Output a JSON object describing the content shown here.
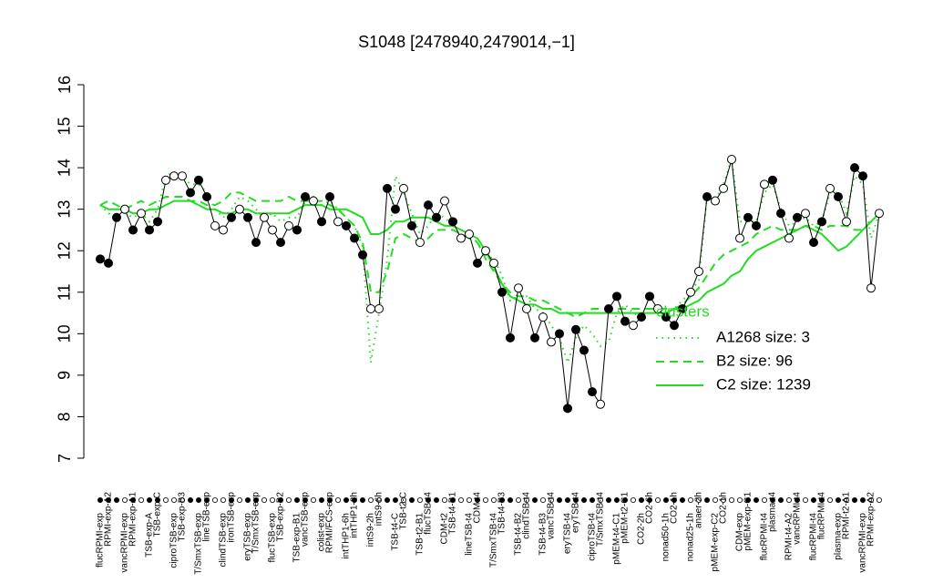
{
  "chart_data": {
    "type": "line",
    "title": "S1048 [2478940,2479014,−1]",
    "ylim": [
      7,
      16
    ],
    "yticks": [
      7,
      8,
      9,
      10,
      11,
      12,
      13,
      14,
      15,
      16
    ],
    "legend_title": "clusters",
    "legend_position": "right",
    "categories": [
      "flucRPMI-exp",
      "RPMI-exp-A2",
      null,
      "vancRPMI-exp",
      "RPMI-exp-A1",
      null,
      "TSB-exp-A",
      "TSB-exp-C",
      null,
      "ciproTSB-exp",
      "TSB-exp-B3",
      null,
      "T/SmxTSB-exp",
      "lineTSB-exp",
      null,
      "clindTSB-exp",
      "ironTSB-exp",
      null,
      "eryTSB-exp",
      "T/SmxTSB-exp",
      null,
      "flucTSB-exp",
      "TSB-exp-B2",
      null,
      "TSB-exp-B1",
      "vancTSB-exp",
      null,
      "colist-exp",
      "RPMI/FCS-exp",
      null,
      "intTHP1-6h",
      "intTHP1-2h",
      null,
      "intS9-2h",
      "intS9-6h",
      null,
      "TSB-t4-C",
      "TSB-t2-C",
      null,
      "TSB-t2-B1",
      "flucTSB-t4",
      null,
      "CDM-t2",
      "TSB-t4-B1",
      null,
      "lineTSB-t4",
      "CDM-t4",
      null,
      "T/SmxTSB-t4",
      "TSB-t4-B3",
      null,
      "TSB-t4-B2",
      "clindTSB-t4",
      null,
      "TSB-t4-B3",
      "vancTSB-t4",
      null,
      "eryTSB-t4",
      "eryTSB-t4",
      null,
      "ciproTSB-t4",
      "T/SmxTSB-t4",
      null,
      "pMEM-t4-C1",
      "pMEM-t2-C1",
      null,
      "CO2-2h",
      "CO2-6h",
      null,
      "nonad50-1h",
      "CO2-1h",
      null,
      "nonad25-1h",
      "anaer-2h",
      null,
      "pMEM-exp-C2",
      "CO2-1h",
      null,
      "CDM-exp",
      "pMEM-exp-C1",
      null,
      "flucRPMI-t4",
      "plasma-t4",
      null,
      "RPMI-t4-A2",
      "vancRPMI-t4",
      null,
      "flucRPMI-t4",
      "flucRPMI-t4",
      null,
      "plasma-exp",
      "RPMI-t2-A1",
      null,
      "vancRPMI-exp",
      "RPMI-exp-A2",
      null
    ],
    "filled": [
      true,
      true,
      true,
      false,
      true,
      false,
      true,
      true,
      false,
      false,
      false,
      true,
      true,
      true,
      false,
      false,
      true,
      false,
      true,
      true,
      false,
      false,
      true,
      false,
      true,
      true,
      false,
      true,
      true,
      false,
      true,
      true,
      true,
      false,
      false,
      true,
      true,
      false,
      true,
      false,
      true,
      true,
      false,
      true,
      false,
      false,
      true,
      false,
      false,
      true,
      true,
      false,
      false,
      true,
      false,
      false,
      true,
      true,
      true,
      true,
      true,
      false,
      true,
      true,
      true,
      false,
      true,
      true,
      false,
      true,
      true,
      true,
      false,
      false,
      true,
      false,
      false,
      false,
      false,
      true,
      true,
      false,
      true,
      true,
      false,
      true,
      false,
      true,
      true,
      false,
      true,
      false,
      true,
      true,
      false,
      false
    ],
    "series": [
      {
        "color": "#000000",
        "style": "solid",
        "markers": true,
        "values": [
          11.8,
          11.7,
          12.8,
          13.0,
          12.5,
          12.9,
          12.5,
          12.7,
          13.7,
          13.8,
          13.8,
          13.4,
          13.7,
          13.3,
          12.6,
          12.5,
          12.8,
          13.0,
          12.8,
          12.2,
          12.8,
          12.5,
          12.2,
          12.6,
          12.5,
          13.3,
          13.2,
          12.7,
          13.3,
          12.7,
          12.6,
          12.3,
          11.9,
          10.6,
          10.6,
          13.5,
          13.0,
          13.5,
          12.6,
          12.2,
          13.1,
          12.8,
          13.2,
          12.7,
          12.3,
          12.4,
          11.7,
          12.0,
          11.7,
          11.0,
          9.9,
          11.1,
          10.6,
          9.9,
          10.4,
          9.8,
          10.0,
          8.2,
          10.1,
          9.6,
          8.6,
          8.3,
          10.6,
          10.9,
          10.3,
          10.2,
          10.4,
          10.9,
          10.6,
          10.4,
          10.2,
          10.6,
          11.0,
          11.5,
          13.3,
          13.2,
          13.5,
          14.2,
          12.3,
          12.8,
          12.6,
          13.6,
          13.7,
          12.9,
          12.3,
          12.8,
          12.9,
          12.2,
          12.7,
          13.5,
          13.3,
          12.7,
          14.0,
          13.8,
          11.1,
          12.9
        ]
      },
      {
        "name": "A1268 size: 3",
        "color": "#22dd22",
        "style": "dotted",
        "values": [
          13.1,
          12.9,
          12.8,
          12.9,
          12.8,
          12.9,
          12.7,
          13.0,
          13.8,
          13.9,
          13.8,
          13.6,
          13.6,
          13.4,
          13.0,
          12.8,
          13.0,
          13.3,
          13.2,
          13.0,
          12.8,
          12.9,
          12.7,
          12.8,
          12.8,
          13.2,
          13.3,
          13.1,
          13.2,
          13.0,
          12.8,
          12.6,
          12.1,
          9.3,
          10.5,
          11.8,
          13.8,
          13.4,
          12.9,
          12.4,
          12.6,
          12.9,
          12.8,
          12.6,
          12.5,
          12.4,
          12.2,
          11.9,
          11.8,
          11.4,
          10.8,
          10.9,
          10.9,
          10.6,
          10.5,
          10.2,
          9.9,
          9.3,
          9.9,
          10.2,
          10.0,
          9.7,
          9.8,
          10.5,
          10.7,
          10.5,
          10.4,
          10.6,
          10.7,
          10.6,
          10.6,
          10.8,
          11.0,
          11.3,
          13.3,
          13.2,
          13.6,
          14.2,
          12.7,
          12.7,
          12.7,
          13.4,
          13.6,
          13.0,
          12.6,
          12.7,
          12.8,
          12.6,
          12.7,
          13.4,
          13.4,
          12.9,
          13.8,
          13.6,
          12.3,
          12.9
        ]
      },
      {
        "name": "B2 size: 96",
        "color": "#22dd22",
        "style": "dashed",
        "values": [
          13.1,
          13.2,
          13.1,
          13.0,
          13.1,
          13.2,
          13.1,
          13.2,
          13.3,
          13.3,
          13.3,
          13.2,
          13.2,
          13.1,
          13.1,
          13.2,
          13.4,
          13.4,
          13.3,
          13.2,
          13.2,
          13.2,
          13.2,
          13.3,
          13.2,
          13.2,
          13.2,
          13.2,
          13.1,
          13.0,
          12.8,
          12.6,
          12.2,
          11.0,
          11.0,
          11.5,
          12.3,
          12.4,
          12.3,
          12.2,
          12.3,
          12.5,
          12.5,
          12.5,
          12.4,
          12.3,
          12.2,
          11.8,
          11.5,
          11.2,
          11.0,
          10.9,
          10.9,
          10.8,
          10.8,
          10.7,
          10.6,
          10.5,
          10.4,
          10.5,
          10.6,
          10.6,
          10.6,
          10.6,
          10.6,
          10.6,
          10.6,
          10.6,
          10.6,
          10.6,
          10.6,
          10.7,
          10.9,
          11.1,
          11.4,
          11.7,
          11.9,
          12.0,
          12.1,
          12.2,
          12.4,
          12.5,
          12.6,
          12.5,
          12.5,
          12.5,
          12.6,
          12.6,
          12.5,
          12.6,
          12.6,
          12.6,
          12.5,
          12.5,
          12.7,
          12.9
        ]
      },
      {
        "name": "C2 size: 1239",
        "color": "#22dd22",
        "style": "solid",
        "values": [
          13.1,
          13.0,
          13.0,
          13.0,
          12.9,
          12.9,
          13.0,
          13.0,
          13.1,
          13.2,
          13.2,
          13.2,
          13.1,
          13.0,
          13.0,
          12.9,
          12.9,
          13.0,
          13.0,
          12.9,
          12.9,
          12.9,
          12.9,
          12.9,
          13.0,
          13.1,
          13.1,
          13.1,
          13.0,
          13.0,
          13.0,
          12.9,
          12.8,
          12.4,
          12.4,
          12.5,
          12.7,
          12.7,
          12.8,
          12.8,
          12.8,
          12.7,
          12.6,
          12.6,
          12.5,
          12.4,
          12.3,
          12.0,
          11.6,
          11.2,
          10.9,
          10.8,
          10.7,
          10.7,
          10.6,
          10.6,
          10.5,
          10.5,
          10.5,
          10.5,
          10.5,
          10.5,
          10.5,
          10.5,
          10.5,
          10.5,
          10.5,
          10.5,
          10.5,
          10.5,
          10.6,
          10.6,
          10.7,
          10.8,
          11.0,
          11.1,
          11.2,
          11.4,
          11.5,
          11.8,
          12.0,
          12.1,
          12.2,
          12.3,
          12.4,
          12.5,
          12.6,
          12.5,
          12.4,
          12.2,
          12.0,
          12.1,
          12.3,
          12.5,
          12.7,
          12.9
        ]
      }
    ]
  }
}
